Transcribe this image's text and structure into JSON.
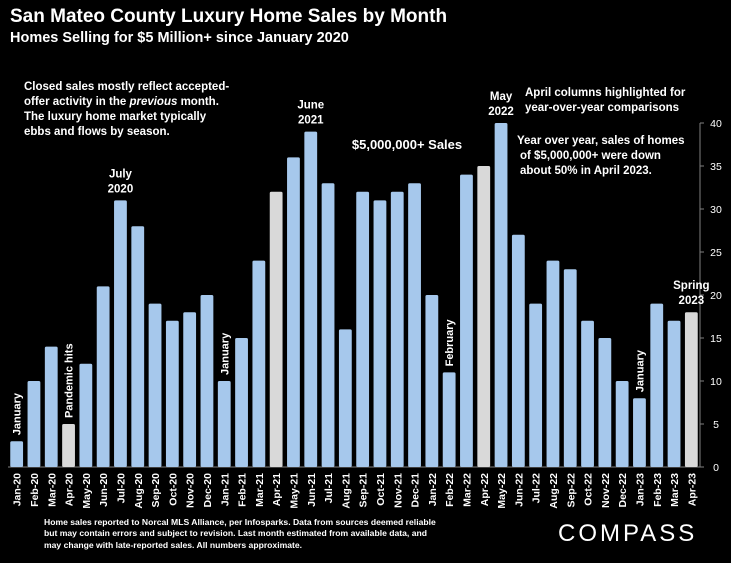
{
  "header": {
    "title": "San Mateo County Luxury Home Sales by Month",
    "subtitle": "Homes Selling for $5 Million+ since January 2020"
  },
  "notes": {
    "left_line1": "Closed sales mostly reflect accepted-",
    "left_line2_a": "offer activity in the ",
    "left_line2_b": "previous",
    "left_line2_c": " month.",
    "left_line3": "The luxury home market typically",
    "left_line4": "ebbs and flows by season.",
    "april_line1": "April columns highlighted for",
    "april_line2": "year-over-year comparisons",
    "yoy_line1": "Year over year, sales of homes",
    "yoy_line2": "of $5,000,000+ were down",
    "yoy_line3": "about 50% in April 2023."
  },
  "footer": {
    "line1": "Home sales reported to Norcal MLS Alliance, per Infosparks. Data from sources deemed reliable",
    "line2": "but may contain errors and subject to revision.  Last month estimated from available data, and",
    "line3": "may change with late-reported sales. All numbers approximate."
  },
  "brand": "COMPASS",
  "colors": {
    "background": "#000000",
    "bar": "#a6c8ec",
    "highlight": "#d9d9d9",
    "text": "#ffffff"
  },
  "chart_data": {
    "type": "bar",
    "title": "San Mateo County Luxury Home Sales by Month",
    "ylim": [
      0,
      40
    ],
    "yticks": [
      0,
      5,
      10,
      15,
      20,
      25,
      30,
      35,
      40
    ],
    "y_axis_side": "right",
    "grid": false,
    "series_label": "$5,000,000+ Sales",
    "categories": [
      "Jan-20",
      "Feb-20",
      "Mar-20",
      "Apr-20",
      "May-20",
      "Jun-20",
      "Jul-20",
      "Aug-20",
      "Sep-20",
      "Oct-20",
      "Nov-20",
      "Dec-20",
      "Jan-21",
      "Feb-21",
      "Mar-21",
      "Apr-21",
      "May-21",
      "Jun-21",
      "Jul-21",
      "Aug-21",
      "Sep-21",
      "Oct-21",
      "Nov-21",
      "Dec-21",
      "Jan-22",
      "Feb-22",
      "Mar-22",
      "Apr-22",
      "May-22",
      "Jun-22",
      "Jul-22",
      "Aug-22",
      "Sep-22",
      "Oct-22",
      "Nov-22",
      "Dec-22",
      "Jan-23",
      "Feb-23",
      "Mar-23",
      "Apr-23"
    ],
    "values": [
      3,
      10,
      14,
      5,
      12,
      21,
      31,
      28,
      19,
      17,
      18,
      20,
      10,
      15,
      24,
      32,
      36,
      39,
      33,
      16,
      32,
      31,
      32,
      33,
      20,
      11,
      34,
      35,
      40,
      27,
      19,
      24,
      23,
      17,
      15,
      10,
      8,
      19,
      17,
      18
    ],
    "highlighted": [
      "Apr-20",
      "Apr-21",
      "Apr-22",
      "Apr-23"
    ],
    "annotations": [
      {
        "category": "Jan-20",
        "text": "January",
        "orientation": "vertical"
      },
      {
        "category": "Apr-20",
        "text": "Pandemic hits",
        "orientation": "vertical"
      },
      {
        "category": "Jul-20",
        "text": "July 2020",
        "orientation": "horizontal"
      },
      {
        "category": "Jan-21",
        "text": "January",
        "orientation": "vertical"
      },
      {
        "category": "Jun-21",
        "text": "June 2021",
        "orientation": "horizontal"
      },
      {
        "category": "Feb-22",
        "text": "February",
        "orientation": "vertical"
      },
      {
        "category": "May-22",
        "text": "May 2022",
        "orientation": "horizontal"
      },
      {
        "category": "Jan-23",
        "text": "January",
        "orientation": "vertical"
      },
      {
        "category": "Apr-23",
        "text": "Spring 2023",
        "orientation": "horizontal"
      }
    ]
  }
}
